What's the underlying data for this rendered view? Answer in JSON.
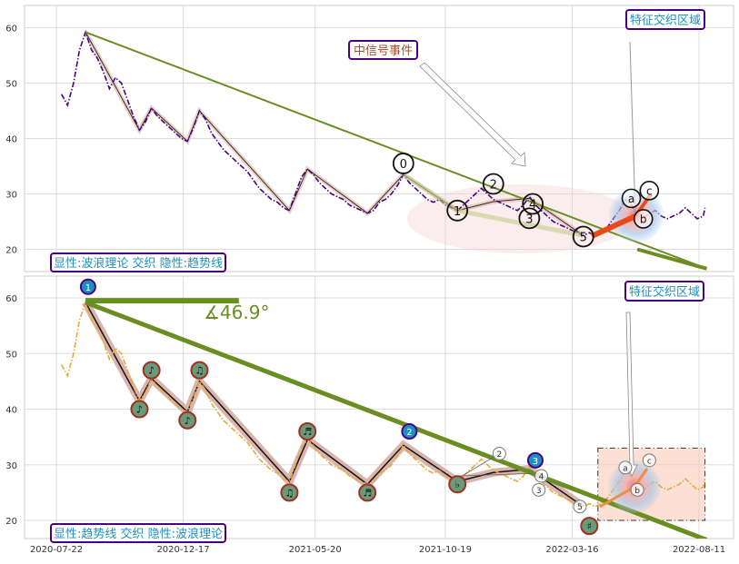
{
  "chart_data": [
    {
      "type": "line",
      "panel": "top",
      "ylim": [
        16,
        64
      ],
      "y_ticks": [
        20,
        30,
        40,
        50,
        60
      ],
      "grid": true,
      "price_series": {
        "color": "#4b0082",
        "style": "dash-dot",
        "points": [
          [
            "2020-07-28",
            48
          ],
          [
            "2020-08-04",
            46
          ],
          [
            "2020-08-11",
            50
          ],
          [
            "2020-08-18",
            56
          ],
          [
            "2020-08-25",
            59.2
          ],
          [
            "2020-09-01",
            56
          ],
          [
            "2020-09-08",
            54.5
          ],
          [
            "2020-09-15",
            52
          ],
          [
            "2020-09-22",
            49
          ],
          [
            "2020-09-29",
            51
          ],
          [
            "2020-10-06",
            50
          ],
          [
            "2020-10-13",
            47
          ],
          [
            "2020-10-20",
            44
          ],
          [
            "2020-10-27",
            41.5
          ],
          [
            "2020-11-03",
            43
          ],
          [
            "2020-11-10",
            45.5
          ],
          [
            "2020-11-17",
            44
          ],
          [
            "2020-11-24",
            43
          ],
          [
            "2020-12-01",
            42
          ],
          [
            "2020-12-08",
            41
          ],
          [
            "2020-12-15",
            40
          ],
          [
            "2020-12-22",
            39.5
          ],
          [
            "2020-12-29",
            42
          ],
          [
            "2021-01-05",
            45
          ],
          [
            "2021-01-12",
            43.5
          ],
          [
            "2021-01-19",
            41
          ],
          [
            "2021-01-26",
            39.5
          ],
          [
            "2021-02-02",
            38
          ],
          [
            "2021-02-09",
            37
          ],
          [
            "2021-02-16",
            36
          ],
          [
            "2021-02-23",
            35
          ],
          [
            "2021-03-02",
            34
          ],
          [
            "2021-03-09",
            32.5
          ],
          [
            "2021-03-16",
            31
          ],
          [
            "2021-03-23",
            30
          ],
          [
            "2021-03-30",
            29
          ],
          [
            "2021-04-06",
            28.5
          ],
          [
            "2021-04-13",
            27.5
          ],
          [
            "2021-04-20",
            27
          ],
          [
            "2021-04-27",
            30
          ],
          [
            "2021-05-04",
            33
          ],
          [
            "2021-05-11",
            34.5
          ],
          [
            "2021-05-18",
            33.5
          ],
          [
            "2021-05-25",
            32
          ],
          [
            "2021-06-01",
            31
          ],
          [
            "2021-06-08",
            30
          ],
          [
            "2021-06-15",
            29.5
          ],
          [
            "2021-06-22",
            29
          ],
          [
            "2021-06-29",
            28
          ],
          [
            "2021-07-06",
            27.5
          ],
          [
            "2021-07-13",
            27
          ],
          [
            "2021-07-20",
            26.5
          ],
          [
            "2021-07-27",
            27
          ],
          [
            "2021-08-03",
            28.5
          ],
          [
            "2021-08-10",
            29
          ],
          [
            "2021-08-17",
            30
          ],
          [
            "2021-08-24",
            31.5
          ],
          [
            "2021-08-31",
            33.5
          ],
          [
            "2021-09-07",
            32
          ],
          [
            "2021-09-14",
            31
          ],
          [
            "2021-09-21",
            30
          ],
          [
            "2021-09-28",
            29
          ],
          [
            "2021-10-05",
            28.5
          ],
          [
            "2021-10-12",
            29
          ],
          [
            "2021-10-19",
            28
          ],
          [
            "2021-10-26",
            27.5
          ],
          [
            "2021-11-02",
            27
          ],
          [
            "2021-11-09",
            28
          ],
          [
            "2021-11-16",
            29
          ],
          [
            "2021-11-23",
            30
          ],
          [
            "2021-11-30",
            31
          ],
          [
            "2021-12-07",
            30
          ],
          [
            "2021-12-14",
            29
          ],
          [
            "2021-12-21",
            28.5
          ],
          [
            "2021-12-28",
            28
          ],
          [
            "2022-01-04",
            27.5
          ],
          [
            "2022-01-11",
            27
          ],
          [
            "2022-01-18",
            28
          ],
          [
            "2022-01-25",
            29.5
          ],
          [
            "2022-02-01",
            28
          ],
          [
            "2022-02-08",
            27
          ],
          [
            "2022-02-15",
            26
          ],
          [
            "2022-02-22",
            25
          ],
          [
            "2022-03-01",
            24.5
          ],
          [
            "2022-03-08",
            24
          ],
          [
            "2022-03-15",
            23.5
          ],
          [
            "2022-03-22",
            23
          ],
          [
            "2022-03-29",
            22.5
          ],
          [
            "2022-04-05",
            23
          ],
          [
            "2022-04-12",
            22.5
          ],
          [
            "2022-04-19",
            23
          ],
          [
            "2022-04-26",
            24
          ],
          [
            "2022-05-03",
            25.5
          ],
          [
            "2022-05-10",
            27
          ],
          [
            "2022-05-17",
            29
          ],
          [
            "2022-05-24",
            28
          ],
          [
            "2022-05-31",
            26
          ],
          [
            "2022-06-07",
            25.5
          ],
          [
            "2022-06-14",
            26.5
          ],
          [
            "2022-06-21",
            27
          ],
          [
            "2022-06-28",
            26
          ],
          [
            "2022-07-05",
            25.5
          ],
          [
            "2022-07-12",
            26
          ],
          [
            "2022-07-19",
            26.5
          ],
          [
            "2022-07-26",
            27.5
          ],
          [
            "2022-08-02",
            26.5
          ],
          [
            "2022-08-09",
            25.5
          ],
          [
            "2022-08-16",
            26
          ],
          [
            "2022-08-18",
            27.5
          ]
        ]
      },
      "wave_line": [
        [
          "2020-08-25",
          59.2
        ],
        [
          "2020-10-27",
          41.5
        ],
        [
          "2020-11-10",
          45.5
        ],
        [
          "2020-12-22",
          39.5
        ],
        [
          "2021-01-05",
          45
        ],
        [
          "2021-04-20",
          27
        ],
        [
          "2021-05-11",
          34.5
        ],
        [
          "2021-07-20",
          26.5
        ],
        [
          "2021-08-31",
          33.5
        ],
        [
          "2021-11-02",
          27
        ],
        [
          "2021-12-14",
          28.6
        ],
        [
          "2022-01-25",
          29.2
        ],
        [
          "2022-03-29",
          22.5
        ]
      ],
      "trend_line": {
        "color": "#6b8e23",
        "from": [
          "2020-08-25",
          59.2
        ],
        "to": [
          "2022-08-20",
          16.5
        ]
      },
      "wave_labels": [
        {
          "text": "0",
          "x": "2021-08-31",
          "y": 35.5
        },
        {
          "text": "1",
          "x": "2021-11-02",
          "y": 27
        },
        {
          "text": "2",
          "x": "2021-12-14",
          "y": 31.8
        },
        {
          "text": "3",
          "x": "2022-01-25",
          "y": 25.6
        },
        {
          "text": "4",
          "x": "2022-01-29",
          "y": 28.2
        },
        {
          "text": "5",
          "x": "2022-03-29",
          "y": 22.3
        }
      ],
      "point_labels": [
        {
          "text": "a",
          "x": "2022-05-24",
          "y": 29.2
        },
        {
          "text": "b",
          "x": "2022-06-07",
          "y": 25.5
        },
        {
          "text": "c",
          "x": "2022-06-14",
          "y": 30.6
        }
      ],
      "annotations": [
        {
          "text": "中信号事件",
          "color": "#a0522d"
        },
        {
          "text": "特征交织区域",
          "color": "#1e90c0"
        }
      ],
      "legend_text": "显性:波浪理论 交织 隐性:趋势线"
    },
    {
      "type": "line",
      "panel": "bottom",
      "ylim": [
        16,
        64
      ],
      "y_ticks": [
        20,
        30,
        40,
        50,
        60
      ],
      "grid": true,
      "x_ticks": [
        "2020-07-22",
        "2020-12-17",
        "2021-05-20",
        "2021-10-19",
        "2022-03-16",
        "2022-08-11"
      ],
      "price_series": {
        "color": "#e8a838",
        "style": "dash-dot",
        "same_values_as": "top"
      },
      "trend_line": {
        "color": "#6b8e23",
        "from": [
          "2020-08-25",
          59.2
        ],
        "to": [
          "2022-08-20",
          16.5
        ]
      },
      "horizontal_line": {
        "color": "#6b8e23",
        "from": [
          "2020-08-25",
          59.5
        ],
        "to": [
          "2021-02-20",
          59.5
        ]
      },
      "angle_label": "∡46.9°",
      "markers": [
        {
          "glyph": "1",
          "x": "2020-08-28",
          "y": 62,
          "fill": "#1e90c0"
        },
        {
          "glyph": "♪",
          "x": "2020-10-27",
          "y": 40,
          "fill": "#6a9a7a"
        },
        {
          "glyph": "♪",
          "x": "2020-11-10",
          "y": 47,
          "fill": "#6a9a7a"
        },
        {
          "glyph": "♪",
          "x": "2020-12-22",
          "y": 38,
          "fill": "#6a9a7a"
        },
        {
          "glyph": "♫",
          "x": "2021-01-05",
          "y": 47,
          "fill": "#6a9a7a"
        },
        {
          "glyph": "♫",
          "x": "2021-04-20",
          "y": 25,
          "fill": "#6a9a7a"
        },
        {
          "glyph": "♬",
          "x": "2021-05-11",
          "y": 36,
          "fill": "#6a9a7a"
        },
        {
          "glyph": "♬",
          "x": "2021-07-20",
          "y": 25,
          "fill": "#6a9a7a"
        },
        {
          "glyph": "2",
          "x": "2021-09-07",
          "y": 36,
          "fill": "#1e90c0"
        },
        {
          "glyph": "♭",
          "x": "2021-11-02",
          "y": 26.5,
          "fill": "#6a9a7a"
        },
        {
          "glyph": "3",
          "x": "2022-02-01",
          "y": 30.8,
          "fill": "#1e90c0"
        },
        {
          "glyph": "♯",
          "x": "2022-04-05",
          "y": 19,
          "fill": "#6a9a7a"
        }
      ],
      "small_labels": [
        {
          "text": "2",
          "x": "2021-12-21",
          "y": 32
        },
        {
          "text": "4",
          "x": "2022-02-08",
          "y": 28
        },
        {
          "text": "3",
          "x": "2022-02-05",
          "y": 25.5
        },
        {
          "text": "5",
          "x": "2022-03-25",
          "y": 22.5
        },
        {
          "text": "a",
          "x": "2022-05-17",
          "y": 29.5
        },
        {
          "text": "b",
          "x": "2022-05-31",
          "y": 25.5
        },
        {
          "text": "c",
          "x": "2022-06-14",
          "y": 30.8
        }
      ],
      "region_box": {
        "x": [
          "2022-04-15",
          "2022-08-18"
        ],
        "y": [
          20,
          33
        ]
      },
      "annotations": [
        {
          "text": "特征交织区域",
          "color": "#1e90c0"
        }
      ],
      "legend_text": "显性:趋势线 交织 隐性:波浪理论"
    }
  ]
}
